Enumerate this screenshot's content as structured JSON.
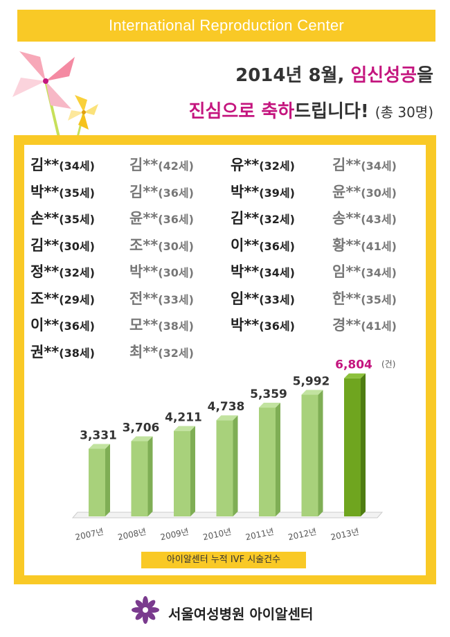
{
  "banner": {
    "text": "International Reproduction Center"
  },
  "headline": {
    "line1_prefix": "2014년 8월, ",
    "line1_highlight": "임신성공",
    "line1_suffix": "을",
    "line2_highlight": "진심으로 축하",
    "line2_suffix": "드립니다!",
    "line2_count": "(총 30명)"
  },
  "columns": [
    {
      "style": "dark",
      "names": [
        {
          "name": "김**",
          "age": "(34세)"
        },
        {
          "name": "박**",
          "age": "(35세)"
        },
        {
          "name": "손**",
          "age": "(35세)"
        },
        {
          "name": "김**",
          "age": "(30세)"
        },
        {
          "name": "정**",
          "age": "(32세)"
        },
        {
          "name": "조**",
          "age": "(29세)"
        },
        {
          "name": "이**",
          "age": "(36세)"
        },
        {
          "name": "권**",
          "age": "(38세)"
        }
      ]
    },
    {
      "style": "grey",
      "names": [
        {
          "name": "김**",
          "age": "(42세)"
        },
        {
          "name": "김**",
          "age": "(36세)"
        },
        {
          "name": "윤**",
          "age": "(36세)"
        },
        {
          "name": "조**",
          "age": "(30세)"
        },
        {
          "name": "박**",
          "age": "(30세)"
        },
        {
          "name": "전**",
          "age": "(33세)"
        },
        {
          "name": "모**",
          "age": "(38세)"
        },
        {
          "name": "최**",
          "age": "(32세)"
        }
      ]
    },
    {
      "style": "dark",
      "names": [
        {
          "name": "유**",
          "age": "(32세)"
        },
        {
          "name": "박**",
          "age": "(39세)"
        },
        {
          "name": "김**",
          "age": "(32세)"
        },
        {
          "name": "이**",
          "age": "(36세)"
        },
        {
          "name": "박**",
          "age": "(34세)"
        },
        {
          "name": "임**",
          "age": "(33세)"
        },
        {
          "name": "박**",
          "age": "(36세)"
        }
      ]
    },
    {
      "style": "grey",
      "names": [
        {
          "name": "김**",
          "age": "(34세)"
        },
        {
          "name": "윤**",
          "age": "(30세)"
        },
        {
          "name": "송**",
          "age": "(43세)"
        },
        {
          "name": "황**",
          "age": "(41세)"
        },
        {
          "name": "임**",
          "age": "(34세)"
        },
        {
          "name": "한**",
          "age": "(35세)"
        },
        {
          "name": "경**",
          "age": "(41세)"
        }
      ]
    }
  ],
  "chart_data": {
    "type": "bar",
    "categories": [
      "2007년",
      "2008년",
      "2009년",
      "2010년",
      "2011년",
      "2012년",
      "2013년"
    ],
    "values": [
      3331,
      3706,
      4211,
      4738,
      5359,
      5992,
      6804
    ],
    "value_labels": [
      "3,331",
      "3,706",
      "4,211",
      "4,738",
      "5,359",
      "5,992",
      "6,804"
    ],
    "unit": "(건)",
    "title": "아이알센터 누적 IVF 시술건수",
    "colors": {
      "normal": "#a8d17b",
      "highlight": "#6fa51f",
      "highlight_label": "#c4157e"
    }
  },
  "footer": {
    "text": "서울여성병원 아이알센터",
    "icon": "flower-logo-icon"
  },
  "colors": {
    "accent": "#f9c926",
    "magenta": "#c4157e"
  }
}
